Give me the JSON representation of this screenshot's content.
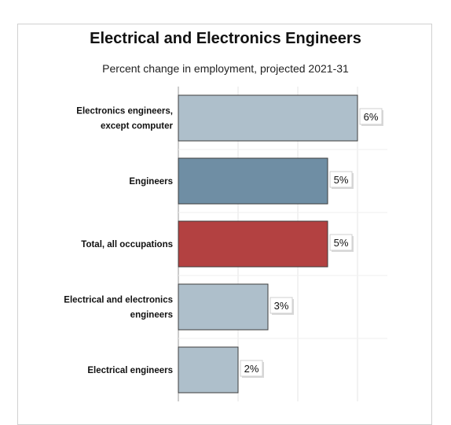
{
  "chart_data": {
    "type": "bar",
    "orientation": "horizontal",
    "title": "Electrical and Electronics Engineers",
    "subtitle": "Percent change in employment, projected 2021-31",
    "categories": [
      [
        "Electronics engineers,",
        "except computer"
      ],
      [
        "Engineers"
      ],
      [
        "Total, all occupations"
      ],
      [
        "Electrical and electronics",
        "engineers"
      ],
      [
        "Electrical engineers"
      ]
    ],
    "values": [
      6,
      5,
      5,
      3,
      2
    ],
    "value_labels": [
      "6%",
      "5%",
      "5%",
      "3%",
      "2%"
    ],
    "xlim": [
      0,
      7
    ],
    "grid": true,
    "bar_colors": [
      "#aebfcb",
      "#6f8ea4",
      "#b34141",
      "#aebfcb",
      "#aebfcb"
    ]
  }
}
